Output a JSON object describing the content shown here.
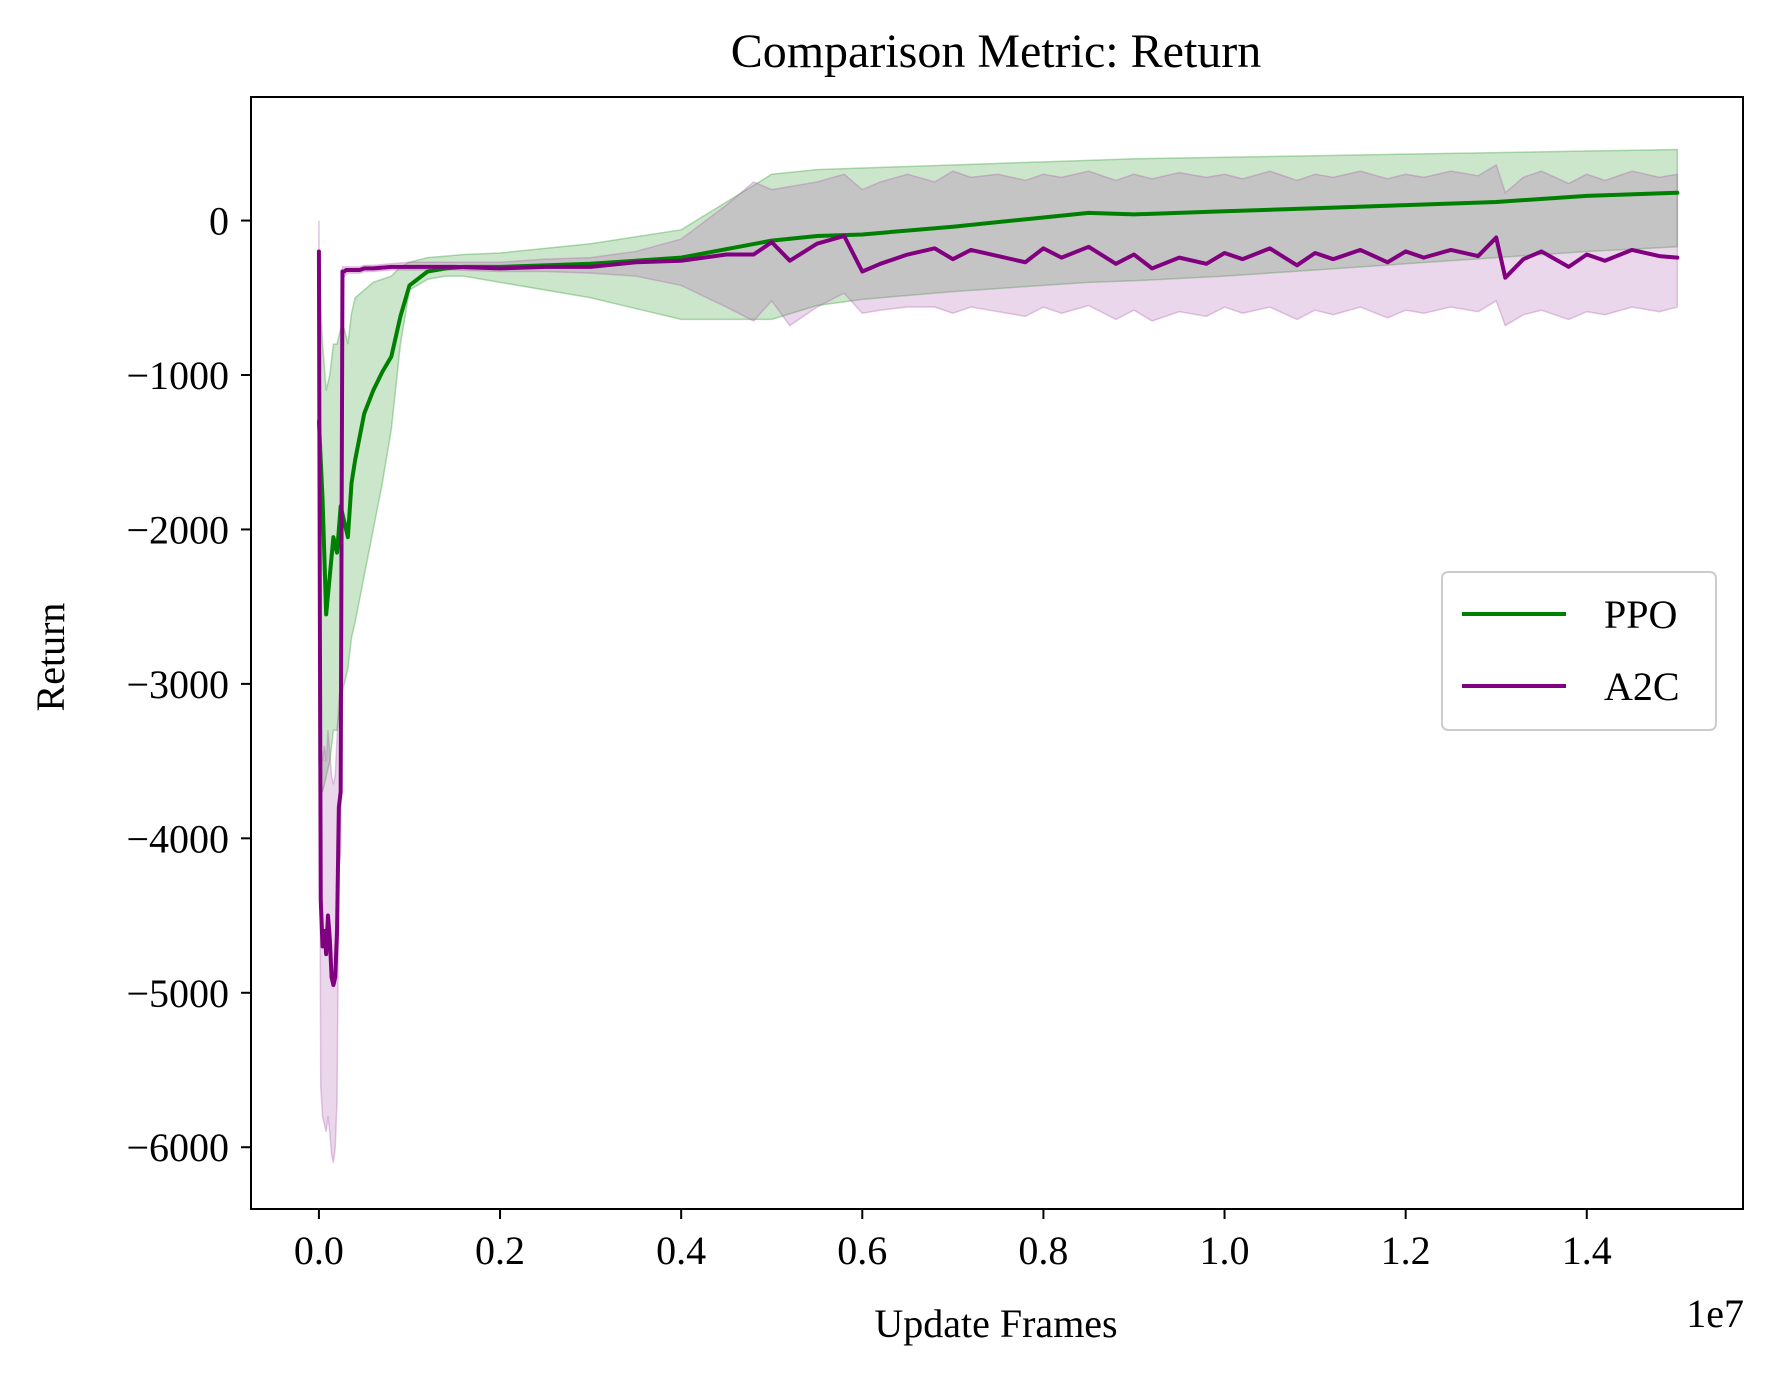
{
  "chart_data": {
    "type": "line",
    "title": "Comparison Metric: Return",
    "xlabel": "Update Frames",
    "ylabel": "Return",
    "x_offset_label": "1e7",
    "xlim": [
      -0.075,
      1.5725
    ],
    "ylim": [
      -6400,
      800
    ],
    "xticks": [
      0.0,
      0.2,
      0.4,
      0.6,
      0.8,
      1.0,
      1.2,
      1.4
    ],
    "xtick_labels": [
      "0.0",
      "0.2",
      "0.4",
      "0.6",
      "0.8",
      "1.0",
      "1.2",
      "1.4"
    ],
    "yticks": [
      0,
      -1000,
      -2000,
      -3000,
      -4000,
      -5000,
      -6000
    ],
    "ytick_labels": [
      "0",
      "−1000",
      "−2000",
      "−3000",
      "−4000",
      "−5000",
      "−6000"
    ],
    "grid": false,
    "legend": {
      "position": "right",
      "entries": [
        "PPO",
        "A2C"
      ]
    },
    "series": [
      {
        "name": "PPO",
        "color": "#008000",
        "band_color": "#2e9b2e",
        "x": [
          0.0,
          0.004,
          0.008,
          0.012,
          0.016,
          0.02,
          0.024,
          0.028,
          0.032,
          0.036,
          0.04,
          0.05,
          0.06,
          0.07,
          0.08,
          0.09,
          0.1,
          0.12,
          0.14,
          0.16,
          0.2,
          0.3,
          0.4,
          0.5,
          0.55,
          0.6,
          0.7,
          0.8,
          0.85,
          0.9,
          1.0,
          1.1,
          1.2,
          1.3,
          1.4,
          1.5
        ],
        "mean": [
          -1300,
          -1800,
          -2550,
          -2300,
          -2050,
          -2150,
          -1850,
          -1950,
          -2050,
          -1700,
          -1550,
          -1250,
          -1100,
          -980,
          -880,
          -620,
          -420,
          -330,
          -310,
          -300,
          -300,
          -280,
          -240,
          -130,
          -100,
          -90,
          -40,
          20,
          50,
          40,
          60,
          80,
          100,
          120,
          160,
          180
        ],
        "lower": [
          -3500,
          -3700,
          -3600,
          -3500,
          -3300,
          -3300,
          -3100,
          -3000,
          -2900,
          -2700,
          -2600,
          -2300,
          -2000,
          -1700,
          -1350,
          -800,
          -450,
          -380,
          -360,
          -360,
          -400,
          -500,
          -640,
          -640,
          -550,
          -510,
          -460,
          -420,
          -400,
          -390,
          -360,
          -320,
          -280,
          -240,
          -200,
          -170
        ],
        "upper": [
          -300,
          -800,
          -1100,
          -1000,
          -800,
          -800,
          -700,
          -700,
          -800,
          -600,
          -500,
          -450,
          -400,
          -380,
          -360,
          -300,
          -270,
          -240,
          -230,
          -220,
          -210,
          -150,
          -60,
          300,
          330,
          340,
          360,
          380,
          390,
          400,
          410,
          420,
          430,
          440,
          450,
          460
        ]
      },
      {
        "name": "A2C",
        "color": "#800080",
        "band_color": "#b060b0",
        "x": [
          0.0,
          0.001,
          0.002,
          0.004,
          0.006,
          0.008,
          0.01,
          0.012,
          0.014,
          0.016,
          0.018,
          0.02,
          0.022,
          0.024,
          0.026,
          0.028,
          0.03,
          0.032,
          0.034,
          0.036,
          0.038,
          0.04,
          0.045,
          0.05,
          0.06,
          0.08,
          0.1,
          0.15,
          0.2,
          0.25,
          0.3,
          0.35,
          0.4,
          0.45,
          0.48,
          0.5,
          0.52,
          0.55,
          0.58,
          0.6,
          0.62,
          0.65,
          0.68,
          0.7,
          0.72,
          0.75,
          0.78,
          0.8,
          0.82,
          0.85,
          0.88,
          0.9,
          0.92,
          0.95,
          0.98,
          1.0,
          1.02,
          1.05,
          1.08,
          1.1,
          1.12,
          1.15,
          1.18,
          1.2,
          1.22,
          1.25,
          1.28,
          1.3,
          1.31,
          1.33,
          1.35,
          1.38,
          1.4,
          1.42,
          1.45,
          1.48,
          1.5
        ],
        "mean": [
          -200,
          -2500,
          -4400,
          -4700,
          -4600,
          -4750,
          -4500,
          -4650,
          -4900,
          -4950,
          -4900,
          -4600,
          -3800,
          -3700,
          -330,
          -330,
          -320,
          -320,
          -320,
          -320,
          -320,
          -320,
          -320,
          -310,
          -310,
          -300,
          -300,
          -300,
          -310,
          -300,
          -300,
          -270,
          -260,
          -220,
          -220,
          -140,
          -260,
          -150,
          -100,
          -330,
          -280,
          -220,
          -180,
          -250,
          -190,
          -230,
          -270,
          -180,
          -240,
          -170,
          -280,
          -220,
          -310,
          -240,
          -280,
          -210,
          -250,
          -180,
          -290,
          -210,
          -250,
          -190,
          -270,
          -200,
          -240,
          -190,
          -230,
          -110,
          -370,
          -250,
          -200,
          -300,
          -220,
          -260,
          -190,
          -230,
          -240
        ],
        "lower": [
          -400,
          -3800,
          -5600,
          -5800,
          -5850,
          -5900,
          -5800,
          -5900,
          -6050,
          -6100,
          -6000,
          -5700,
          -4200,
          -4100,
          -360,
          -360,
          -350,
          -340,
          -340,
          -340,
          -340,
          -340,
          -340,
          -330,
          -330,
          -320,
          -320,
          -320,
          -330,
          -330,
          -340,
          -360,
          -420,
          -560,
          -650,
          -520,
          -680,
          -560,
          -470,
          -600,
          -580,
          -560,
          -560,
          -600,
          -560,
          -590,
          -620,
          -560,
          -600,
          -550,
          -640,
          -580,
          -650,
          -590,
          -620,
          -560,
          -600,
          -560,
          -640,
          -580,
          -610,
          -560,
          -630,
          -580,
          -600,
          -560,
          -590,
          -520,
          -680,
          -610,
          -580,
          -640,
          -590,
          -610,
          -560,
          -590,
          -560
        ],
        "upper": [
          0,
          -1200,
          -3400,
          -3500,
          -3400,
          -3500,
          -3300,
          -3450,
          -3600,
          -3650,
          -3600,
          -3350,
          -3100,
          -3000,
          -300,
          -300,
          -300,
          -300,
          -300,
          -300,
          -300,
          -300,
          -300,
          -290,
          -290,
          -280,
          -270,
          -270,
          -270,
          -250,
          -240,
          -200,
          -120,
          100,
          250,
          200,
          220,
          250,
          300,
          200,
          250,
          300,
          250,
          320,
          280,
          300,
          260,
          300,
          280,
          320,
          260,
          300,
          270,
          310,
          280,
          300,
          270,
          320,
          260,
          300,
          280,
          320,
          270,
          300,
          280,
          320,
          290,
          360,
          180,
          280,
          320,
          240,
          300,
          260,
          320,
          280,
          300
        ]
      }
    ]
  }
}
